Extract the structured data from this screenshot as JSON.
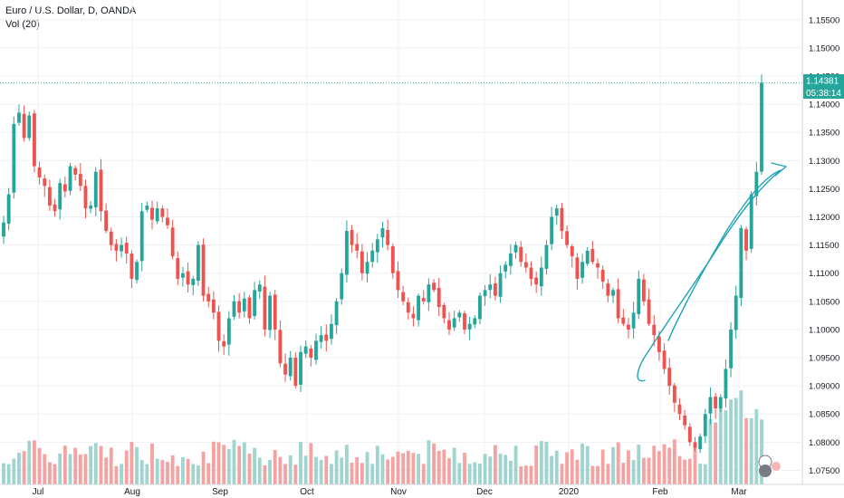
{
  "header": {
    "symbol_line": "Euro / U.S. Dollar, D, OANDA",
    "volume_line": "Vol (20)"
  },
  "price_labels": {
    "last_price": "1.14381",
    "countdown": "05:38:14"
  },
  "colors": {
    "up": "#26a69a",
    "down": "#ef5350",
    "up_volume": "#9fd4cf",
    "down_volume": "#f5a3a2",
    "grid": "#eef0f4",
    "last_price_line": "#26a69a",
    "drawing": "#1fa3b3",
    "axis_text": "#131722"
  },
  "chart_data": {
    "type": "candlestick",
    "instrument": "Euro / U.S. Dollar",
    "timeframe": "D",
    "source": "OANDA",
    "y_axis": {
      "side": "right",
      "range": [
        1.0725,
        1.1585
      ],
      "ticks": [
        "1.15500",
        "1.15000",
        "1.14500",
        "1.14000",
        "1.13500",
        "1.13000",
        "1.12500",
        "1.12000",
        "1.11500",
        "1.11000",
        "1.10500",
        "1.10000",
        "1.09500",
        "1.09000",
        "1.08500",
        "1.08000",
        "1.07500"
      ]
    },
    "x_axis": {
      "ticks": [
        "Jul",
        "Aug",
        "Sep",
        "Oct",
        "Nov",
        "Dec",
        "2020",
        "Feb",
        "Mar"
      ]
    },
    "last_price": 1.14381,
    "grid": true,
    "indicator": "Vol (20)",
    "series": [
      {
        "name": "EURUSD",
        "segments": [
          [
            1.119,
            1.124,
            1.1365,
            1.1385,
            1.134,
            1.138,
            1.129,
            1.127,
            1.1255,
            1.122,
            1.121,
            1.126,
            1.1245,
            1.129,
            1.1275,
            1.1255,
            1.1215,
            1.122,
            1.128,
            1.121,
            1.1175,
            1.115,
            1.114,
            1.115,
            1.1135,
            1.109,
            1.112,
            1.121,
            1.122,
            1.1195,
            1.1215
          ],
          [
            1.12,
            1.1185,
            1.113,
            1.109,
            1.11,
            1.108,
            1.109,
            1.115,
            1.106,
            1.105,
            1.103,
            1.098,
            1.097,
            1.102,
            1.105,
            1.103,
            1.1055,
            1.102,
            1.107,
            1.108,
            1.1,
            1.106,
            1.1,
            1.094,
            1.092,
            1.095,
            1.09,
            1.096,
            1.097,
            1.095,
            1.098
          ],
          [
            1.099,
            1.098,
            1.101,
            1.105,
            1.11,
            1.1175,
            1.115,
            1.114,
            1.11,
            1.112,
            1.114,
            1.116,
            1.118,
            1.115,
            1.11,
            1.107,
            1.105,
            1.103,
            1.102,
            1.106,
            1.105,
            1.108,
            1.107,
            1.104,
            1.102,
            1.1,
            1.102,
            1.103,
            1.1,
            1.101,
            1.102
          ],
          [
            1.106,
            1.107,
            1.108,
            1.106,
            1.11,
            1.1115,
            1.1135,
            1.115,
            1.112,
            1.111,
            1.109,
            1.108,
            1.111,
            1.115,
            1.12,
            1.1215,
            1.1175,
            1.115,
            1.113,
            1.109,
            1.112,
            1.114,
            1.112,
            1.111,
            1.1085,
            1.106,
            1.107,
            1.102,
            1.101,
            1.1,
            1.103
          ],
          [
            1.109,
            1.105,
            1.101,
            1.099,
            1.096,
            1.093,
            1.09,
            1.087,
            1.085,
            1.083,
            1.08,
            1.079,
            1.081,
            1.085,
            1.088,
            1.086,
            1.088,
            1.093,
            1.1,
            1.106,
            1.118,
            1.114,
            1.124,
            1.128,
            1.1438
          ]
        ]
      }
    ]
  }
}
